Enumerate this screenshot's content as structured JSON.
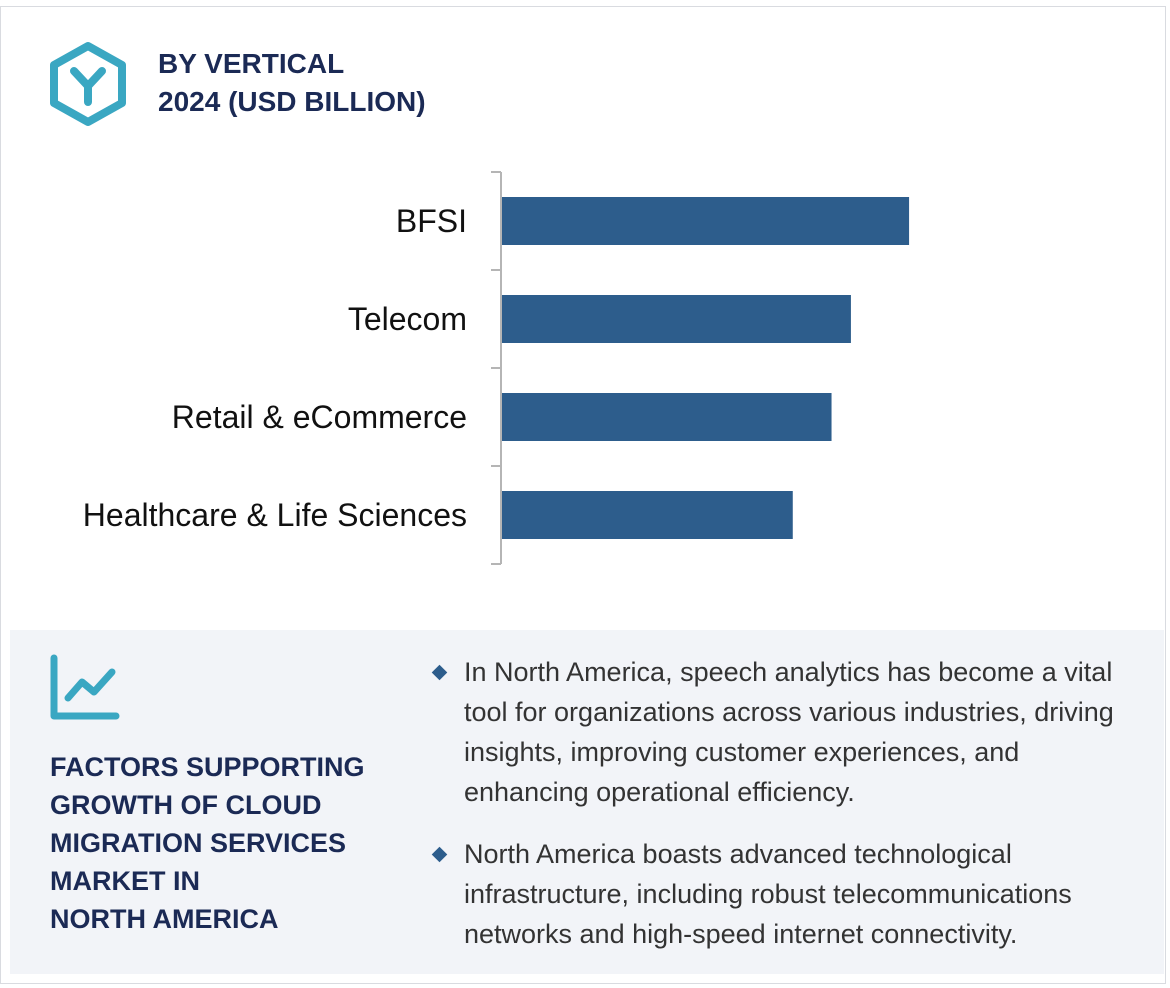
{
  "header": {
    "title_line1": "BY VERTICAL",
    "title_line2": "2024 (USD BILLION)"
  },
  "icons": {
    "logo": "hexagon-y-logo-icon",
    "trend": "trend-chart-icon",
    "bullet": "diamond-bullet-icon"
  },
  "colors": {
    "bar": "#2d5d8c",
    "title": "#1b2a55",
    "accent": "#3aa7c2"
  },
  "chart_data": {
    "type": "bar",
    "orientation": "horizontal",
    "title": "",
    "xlabel": "",
    "ylabel": "",
    "categories": [
      "BFSI",
      "Telecom",
      "Retail & eCommerce",
      "Healthcare & Life Sciences"
    ],
    "values": [
      4.2,
      3.6,
      3.4,
      3.0
    ],
    "xlim": [
      0,
      6.5
    ],
    "grid": false,
    "legend": "none",
    "value_labels": false
  },
  "factors": {
    "title_lines": [
      "FACTORS SUPPORTING",
      "GROWTH OF CLOUD",
      "MIGRATION SERVICES",
      "MARKET IN",
      "NORTH AMERICA"
    ],
    "bullets": [
      "In North America, speech analytics has become a vital tool for organizations across various industries, driving insights, improving customer experiences, and enhancing operational efficiency.",
      "North America boasts advanced technological infrastructure, including robust telecommunications networks and high-speed internet connectivity."
    ]
  }
}
